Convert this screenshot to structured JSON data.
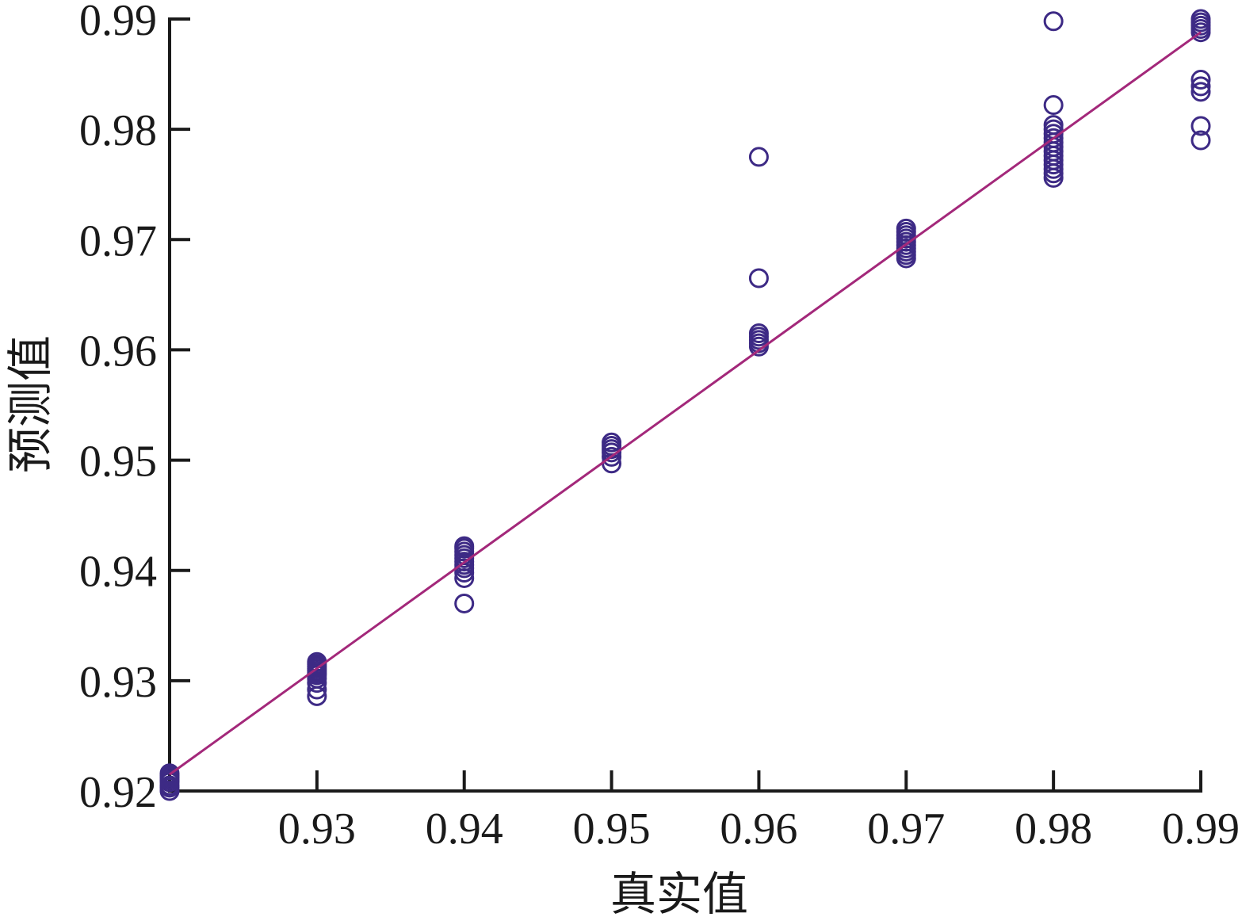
{
  "chart_data": {
    "type": "scatter",
    "xlabel": "真实值",
    "ylabel": "预测值",
    "xlim": [
      0.92,
      0.99
    ],
    "ylim": [
      0.92,
      0.99
    ],
    "x_ticks": [
      0.93,
      0.94,
      0.95,
      0.96,
      0.97,
      0.98,
      0.99
    ],
    "x_tick_labels": [
      "0.93",
      "0.94",
      "0.95",
      "0.96",
      "0.97",
      "0.98",
      "0.99"
    ],
    "y_ticks": [
      0.92,
      0.93,
      0.94,
      0.95,
      0.96,
      0.97,
      0.98,
      0.99
    ],
    "y_tick_labels": [
      "0.92",
      "0.93",
      "0.94",
      "0.95",
      "0.96",
      "0.97",
      "0.98",
      "0.99"
    ],
    "grid": false,
    "colors": {
      "points": "#3d2a85",
      "fit_line": "#a3287a",
      "axis": "#1a1a1a"
    },
    "fit_line": {
      "x": [
        0.92,
        0.99
      ],
      "y": [
        0.9215,
        0.9888
      ]
    },
    "series": [
      {
        "points": [
          {
            "x": 0.92,
            "y": 0.92
          },
          {
            "x": 0.92,
            "y": 0.9203
          },
          {
            "x": 0.92,
            "y": 0.9205
          },
          {
            "x": 0.92,
            "y": 0.9208
          },
          {
            "x": 0.92,
            "y": 0.921
          },
          {
            "x": 0.92,
            "y": 0.9212
          },
          {
            "x": 0.92,
            "y": 0.9214
          },
          {
            "x": 0.92,
            "y": 0.9216
          },
          {
            "x": 0.93,
            "y": 0.9286
          },
          {
            "x": 0.93,
            "y": 0.9292
          },
          {
            "x": 0.93,
            "y": 0.9298
          },
          {
            "x": 0.93,
            "y": 0.9302
          },
          {
            "x": 0.93,
            "y": 0.9305
          },
          {
            "x": 0.93,
            "y": 0.9307
          },
          {
            "x": 0.93,
            "y": 0.9309
          },
          {
            "x": 0.93,
            "y": 0.9311
          },
          {
            "x": 0.93,
            "y": 0.9313
          },
          {
            "x": 0.93,
            "y": 0.9315
          },
          {
            "x": 0.93,
            "y": 0.9317
          },
          {
            "x": 0.94,
            "y": 0.937
          },
          {
            "x": 0.94,
            "y": 0.9393
          },
          {
            "x": 0.94,
            "y": 0.9398
          },
          {
            "x": 0.94,
            "y": 0.9402
          },
          {
            "x": 0.94,
            "y": 0.9405
          },
          {
            "x": 0.94,
            "y": 0.9408
          },
          {
            "x": 0.94,
            "y": 0.9411
          },
          {
            "x": 0.94,
            "y": 0.9414
          },
          {
            "x": 0.94,
            "y": 0.9417
          },
          {
            "x": 0.94,
            "y": 0.942
          },
          {
            "x": 0.94,
            "y": 0.9422
          },
          {
            "x": 0.95,
            "y": 0.9497
          },
          {
            "x": 0.95,
            "y": 0.9503
          },
          {
            "x": 0.95,
            "y": 0.9507
          },
          {
            "x": 0.95,
            "y": 0.951
          },
          {
            "x": 0.95,
            "y": 0.9513
          },
          {
            "x": 0.95,
            "y": 0.9516
          },
          {
            "x": 0.96,
            "y": 0.9603
          },
          {
            "x": 0.96,
            "y": 0.9606
          },
          {
            "x": 0.96,
            "y": 0.9609
          },
          {
            "x": 0.96,
            "y": 0.9612
          },
          {
            "x": 0.96,
            "y": 0.9615
          },
          {
            "x": 0.96,
            "y": 0.9665
          },
          {
            "x": 0.96,
            "y": 0.9775
          },
          {
            "x": 0.97,
            "y": 0.9683
          },
          {
            "x": 0.97,
            "y": 0.9686
          },
          {
            "x": 0.97,
            "y": 0.9689
          },
          {
            "x": 0.97,
            "y": 0.9692
          },
          {
            "x": 0.97,
            "y": 0.9695
          },
          {
            "x": 0.97,
            "y": 0.9698
          },
          {
            "x": 0.97,
            "y": 0.9701
          },
          {
            "x": 0.97,
            "y": 0.9704
          },
          {
            "x": 0.97,
            "y": 0.9707
          },
          {
            "x": 0.97,
            "y": 0.971
          },
          {
            "x": 0.98,
            "y": 0.9756
          },
          {
            "x": 0.98,
            "y": 0.976
          },
          {
            "x": 0.98,
            "y": 0.9764
          },
          {
            "x": 0.98,
            "y": 0.9768
          },
          {
            "x": 0.98,
            "y": 0.9772
          },
          {
            "x": 0.98,
            "y": 0.9776
          },
          {
            "x": 0.98,
            "y": 0.978
          },
          {
            "x": 0.98,
            "y": 0.9784
          },
          {
            "x": 0.98,
            "y": 0.9788
          },
          {
            "x": 0.98,
            "y": 0.9792
          },
          {
            "x": 0.98,
            "y": 0.9796
          },
          {
            "x": 0.98,
            "y": 0.98
          },
          {
            "x": 0.98,
            "y": 0.9804
          },
          {
            "x": 0.98,
            "y": 0.9822
          },
          {
            "x": 0.98,
            "y": 0.9898
          },
          {
            "x": 0.99,
            "y": 0.979
          },
          {
            "x": 0.99,
            "y": 0.9803
          },
          {
            "x": 0.99,
            "y": 0.9834
          },
          {
            "x": 0.99,
            "y": 0.9839
          },
          {
            "x": 0.99,
            "y": 0.9845
          },
          {
            "x": 0.99,
            "y": 0.9888
          },
          {
            "x": 0.99,
            "y": 0.9891
          },
          {
            "x": 0.99,
            "y": 0.9894
          },
          {
            "x": 0.99,
            "y": 0.9897
          },
          {
            "x": 0.99,
            "y": 0.99
          }
        ]
      }
    ]
  }
}
